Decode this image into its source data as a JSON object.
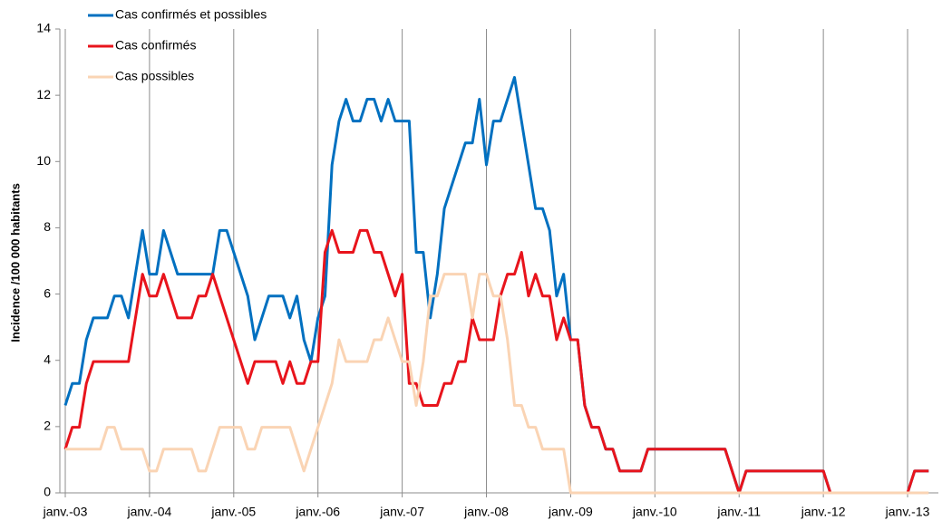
{
  "chart_data": {
    "type": "line",
    "y_label": "Incidence /100 000 habitants",
    "categories": [
      "janv.-03",
      null,
      null,
      null,
      null,
      null,
      null,
      null,
      null,
      null,
      null,
      null,
      "janv.-04",
      null,
      null,
      null,
      null,
      null,
      null,
      null,
      null,
      null,
      null,
      null,
      "janv.-05",
      null,
      null,
      null,
      null,
      null,
      null,
      null,
      null,
      null,
      null,
      null,
      "janv.-06",
      null,
      null,
      null,
      null,
      null,
      null,
      null,
      null,
      null,
      null,
      null,
      "janv.-07",
      null,
      null,
      null,
      null,
      null,
      null,
      null,
      null,
      null,
      null,
      null,
      "janv.-08",
      null,
      null,
      null,
      null,
      null,
      null,
      null,
      null,
      null,
      null,
      null,
      "janv.-09",
      null,
      null,
      null,
      null,
      null,
      null,
      null,
      null,
      null,
      null,
      null,
      "janv.-10",
      null,
      null,
      null,
      null,
      null,
      null,
      null,
      null,
      null,
      null,
      null,
      "janv.-11",
      null,
      null,
      null,
      null,
      null,
      null,
      null,
      null,
      null,
      null,
      null,
      "janv.-12",
      null,
      null,
      null,
      null,
      null,
      null,
      null,
      null,
      null,
      null,
      null,
      "janv.-13",
      null,
      null,
      null
    ],
    "series": [
      {
        "name": "Cas confirmés et possibles",
        "color": "#0070c0",
        "values": [
          2.64,
          3.3,
          3.3,
          4.62,
          5.28,
          5.28,
          5.28,
          5.94,
          5.94,
          5.28,
          6.6,
          7.92,
          6.6,
          6.6,
          7.92,
          7.26,
          6.6,
          6.6,
          6.6,
          6.6,
          6.6,
          6.6,
          7.92,
          7.92,
          7.26,
          6.6,
          5.94,
          4.62,
          5.28,
          5.94,
          5.94,
          5.94,
          5.28,
          5.94,
          4.62,
          3.96,
          5.28,
          5.94,
          9.9,
          11.22,
          11.88,
          11.22,
          11.22,
          11.88,
          11.88,
          11.22,
          11.88,
          11.22,
          11.22,
          11.22,
          7.26,
          7.26,
          5.28,
          6.6,
          8.58,
          9.24,
          9.9,
          10.56,
          10.56,
          11.88,
          9.9,
          11.22,
          11.22,
          11.88,
          12.54,
          11.22,
          9.9,
          8.58,
          8.58,
          7.92,
          5.94,
          6.6,
          4.62,
          4.62,
          2.64,
          1.98,
          1.98,
          1.32,
          1.32,
          0.66,
          0.66,
          0.66,
          0.66,
          1.32,
          1.32,
          1.32,
          1.32,
          1.32,
          1.32,
          1.32,
          1.32,
          1.32,
          1.32,
          1.32,
          1.32,
          0.66,
          0,
          0.66,
          0.66,
          0.66,
          0.66,
          0.66,
          0.66,
          0.66,
          0.66,
          0.66,
          0.66,
          0.66,
          0.66,
          0,
          0,
          0,
          0,
          0,
          0,
          0,
          0,
          0,
          0,
          0,
          0,
          0.66,
          0.66,
          0.66
        ]
      },
      {
        "name": "Cas confirmés",
        "color": "#e8141c",
        "values": [
          1.32,
          1.98,
          1.98,
          3.3,
          3.96,
          3.96,
          3.96,
          3.96,
          3.96,
          3.96,
          5.28,
          6.6,
          5.94,
          5.94,
          6.6,
          5.94,
          5.28,
          5.28,
          5.28,
          5.94,
          5.94,
          6.6,
          5.94,
          5.28,
          4.62,
          3.96,
          3.3,
          3.96,
          3.96,
          3.96,
          3.96,
          3.3,
          3.96,
          3.3,
          3.3,
          3.96,
          3.96,
          7.26,
          7.92,
          7.26,
          7.26,
          7.26,
          7.92,
          7.92,
          7.26,
          7.26,
          6.6,
          5.94,
          6.6,
          3.3,
          3.3,
          2.64,
          2.64,
          2.64,
          3.3,
          3.3,
          3.96,
          3.96,
          5.28,
          4.62,
          4.62,
          4.62,
          5.94,
          6.6,
          6.6,
          7.26,
          5.94,
          6.6,
          5.94,
          5.94,
          4.62,
          5.28,
          4.62,
          4.62,
          2.64,
          1.98,
          1.98,
          1.32,
          1.32,
          0.66,
          0.66,
          0.66,
          0.66,
          1.32,
          1.32,
          1.32,
          1.32,
          1.32,
          1.32,
          1.32,
          1.32,
          1.32,
          1.32,
          1.32,
          1.32,
          0.66,
          0,
          0.66,
          0.66,
          0.66,
          0.66,
          0.66,
          0.66,
          0.66,
          0.66,
          0.66,
          0.66,
          0.66,
          0.66,
          0,
          0,
          0,
          0,
          0,
          0,
          0,
          0,
          0,
          0,
          0,
          0,
          0.66,
          0.66,
          0.66
        ]
      },
      {
        "name": "Cas possibles",
        "color": "#fad4b4",
        "values": [
          1.32,
          1.32,
          1.32,
          1.32,
          1.32,
          1.32,
          1.98,
          1.98,
          1.32,
          1.32,
          1.32,
          1.32,
          0.66,
          0.66,
          1.32,
          1.32,
          1.32,
          1.32,
          1.32,
          0.66,
          0.66,
          1.32,
          1.98,
          1.98,
          1.98,
          1.98,
          1.32,
          1.32,
          1.98,
          1.98,
          1.98,
          1.98,
          1.98,
          1.32,
          0.66,
          1.32,
          1.98,
          2.64,
          3.3,
          4.62,
          3.96,
          3.96,
          3.96,
          3.96,
          4.62,
          4.62,
          5.28,
          4.62,
          3.96,
          3.96,
          2.64,
          3.96,
          5.94,
          5.94,
          6.6,
          6.6,
          6.6,
          6.6,
          5.28,
          6.6,
          6.6,
          5.94,
          5.94,
          4.62,
          2.64,
          2.64,
          1.98,
          1.98,
          1.32,
          1.32,
          1.32,
          1.32,
          0,
          0,
          0,
          0,
          0,
          0,
          0,
          0,
          0,
          0,
          0,
          0,
          0,
          0,
          0,
          0,
          0,
          0,
          0,
          0,
          0,
          0,
          0,
          0,
          0,
          0,
          0,
          0,
          0,
          0,
          0,
          0,
          0,
          0,
          0,
          0,
          0,
          0,
          0,
          0,
          0,
          0,
          0,
          0,
          0,
          0,
          0,
          0,
          0,
          0,
          0,
          0
        ]
      }
    ],
    "ylim": [
      0,
      14
    ],
    "yticks": [
      0,
      2,
      4,
      6,
      8,
      10,
      12,
      14
    ],
    "grid": "x"
  }
}
